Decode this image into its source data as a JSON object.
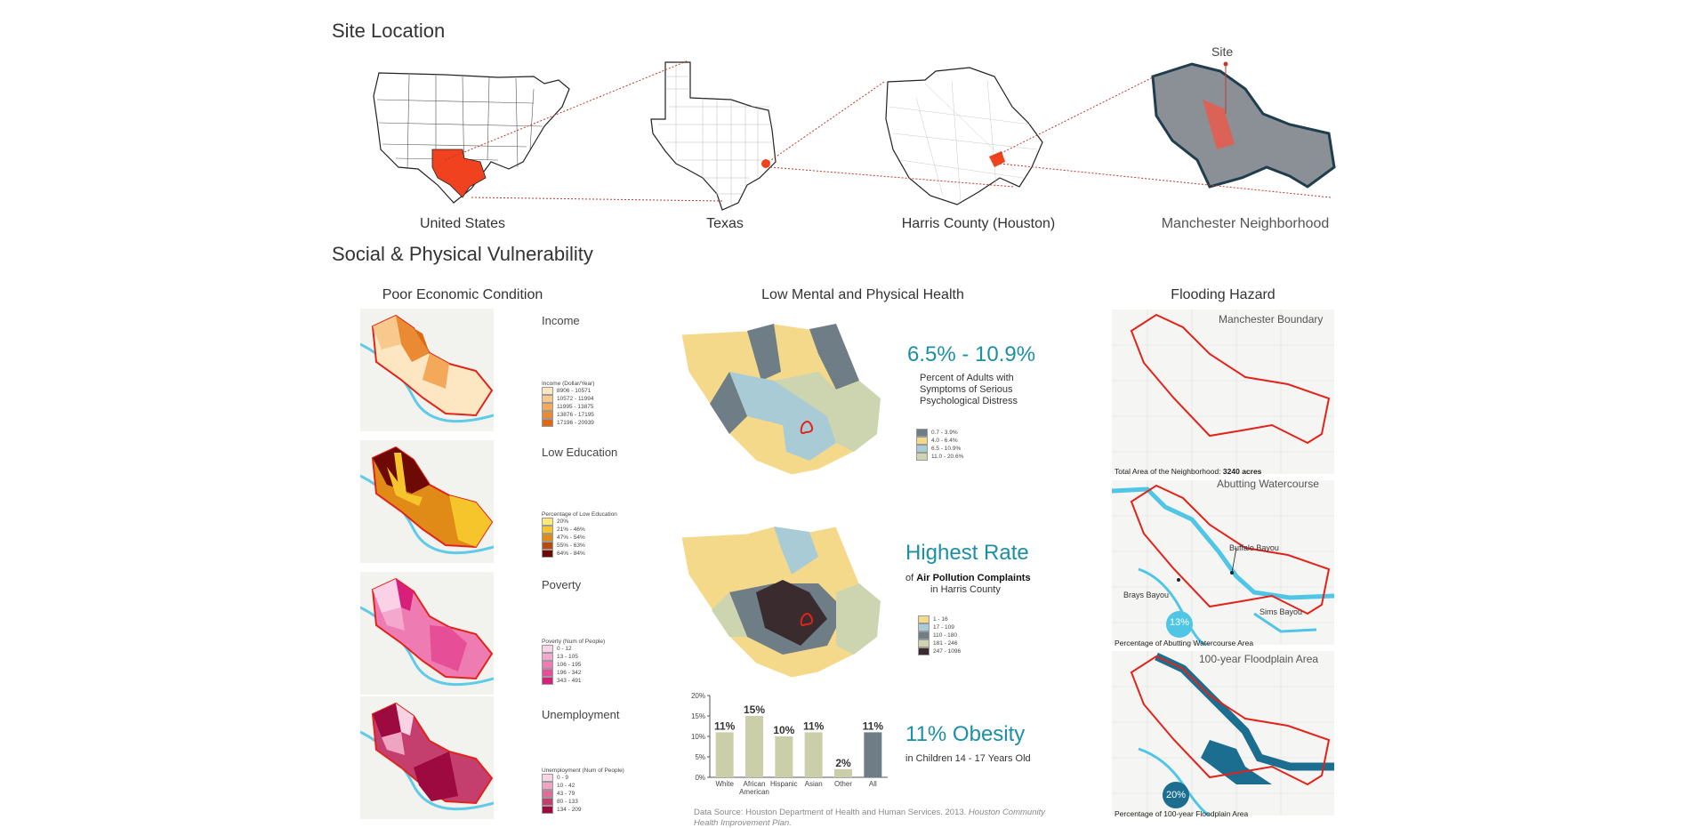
{
  "headings": {
    "site": "Site Location",
    "vuln": "Social & Physical Vulnerability"
  },
  "site_maps": [
    {
      "label": "United States"
    },
    {
      "label": "Texas"
    },
    {
      "label": "Harris County (Houston)"
    },
    {
      "label": "Manchester Neighborhood"
    }
  ],
  "site_marker": "Site",
  "econ": {
    "title": "Poor Economic Condition",
    "panels": [
      {
        "title": "Income",
        "legend_title": "Income (Dollar/Year)",
        "items": [
          "8906 - 10571",
          "10572 - 11994",
          "11995 - 13875",
          "13876 - 17195",
          "17196 - 20939"
        ],
        "colors": [
          "#fde7c2",
          "#f8c98d",
          "#f3a85a",
          "#ea8a33",
          "#de6a15"
        ]
      },
      {
        "title": "Low Education",
        "legend_title": "Percentage of Low Education",
        "items": [
          "20%",
          "21% - 46%",
          "47% - 54%",
          "55% - 63%",
          "64% - 84%"
        ],
        "colors": [
          "#fde97a",
          "#f6c52b",
          "#e08a17",
          "#b84a0b",
          "#6e0a05"
        ]
      },
      {
        "title": "Poverty",
        "legend_title": "Poverty (Num of People)",
        "items": [
          "0 - 12",
          "13 - 105",
          "106 - 195",
          "196 - 342",
          "343 - 491"
        ],
        "colors": [
          "#fbd1e7",
          "#f5a8cd",
          "#ee7cb3",
          "#e64f98",
          "#d81f7c"
        ]
      },
      {
        "title": "Unemployment",
        "legend_title": "Unemployment (Num of People)",
        "items": [
          "0 - 9",
          "10 - 42",
          "43 - 79",
          "80 - 133",
          "134 - 209"
        ],
        "colors": [
          "#f9d2e4",
          "#eea5c2",
          "#dd6e98",
          "#c43e6e",
          "#9d0a3f"
        ]
      }
    ]
  },
  "health": {
    "title": "Low Mental and Physical Health",
    "distress": {
      "big": "6.5% - 10.9%",
      "l1": "Percent of Adults with",
      "l2": "Symptoms of Serious",
      "l3": "Psychological Distress",
      "items": [
        "0.7 - 3.9%",
        "4.0 - 6.4%",
        "6.5 - 10.9%",
        "11.0 - 20.6%"
      ],
      "colors": [
        "#6f7d86",
        "#f5d98a",
        "#a9cbd6",
        "#cdd5b0"
      ]
    },
    "pollution": {
      "big": "Highest Rate",
      "pre": "of ",
      "bold": "Air Pollution Complaints",
      "l2": "in Harris County",
      "items": [
        "1 - 16",
        "17 - 109",
        "110 - 180",
        "181 - 246",
        "247 - 1096"
      ],
      "colors": [
        "#f5d98a",
        "#a9cbd6",
        "#6f7d86",
        "#cdd5b0",
        "#3a2b2e"
      ]
    },
    "obesity": {
      "big": "11% Obesity",
      "sub": "in Children 14 - 17 Years Old"
    },
    "source": "Data Source: Houston Department of Health and Human Services. 2013.",
    "source_italic": "Houston Community",
    "source_italic2": "Health Improvement Plan."
  },
  "chart_data": {
    "type": "bar",
    "categories": [
      "White",
      "African American",
      "Hispanic",
      "Asian",
      "Other",
      "All"
    ],
    "values": [
      11,
      15,
      10,
      11,
      2,
      11
    ],
    "data_labels": [
      "11%",
      "15%",
      "10%",
      "11%",
      "2%",
      "11%"
    ],
    "y_ticks": [
      "0%",
      "5%",
      "10%",
      "15%",
      "20%"
    ],
    "ylim": [
      0,
      20
    ],
    "colors": [
      "#cbcfa9",
      "#cbcfa9",
      "#cbcfa9",
      "#cbcfa9",
      "#cbcfa9",
      "#6f7d86"
    ],
    "title": "",
    "xlabel": "",
    "ylabel": "",
    "grid": false
  },
  "flood": {
    "title": "Flooding Hazard",
    "p1": {
      "title": "Manchester Boundary",
      "note_pre": "Total Area of the Neighborhood: ",
      "note_bold": "3240 acres"
    },
    "p2": {
      "title": "Abutting Watercourse",
      "buffalo": "Buffalo Bayou",
      "brays": "Brays Bayou",
      "sims": "Sims Bayou",
      "pct": "13%",
      "pct_value": 13,
      "note": "Percentage of Abutting Watercourse Area"
    },
    "p3": {
      "title": "100-year Floodplain Area",
      "pct": "20%",
      "pct_value": 20,
      "note": "Percentage of 100-year Floodplain Area"
    }
  },
  "colors": {
    "teal": "#1b8fa6",
    "boundary": "#e2231a",
    "water": "#4fc6e6",
    "flood": "#1b6e8f"
  }
}
